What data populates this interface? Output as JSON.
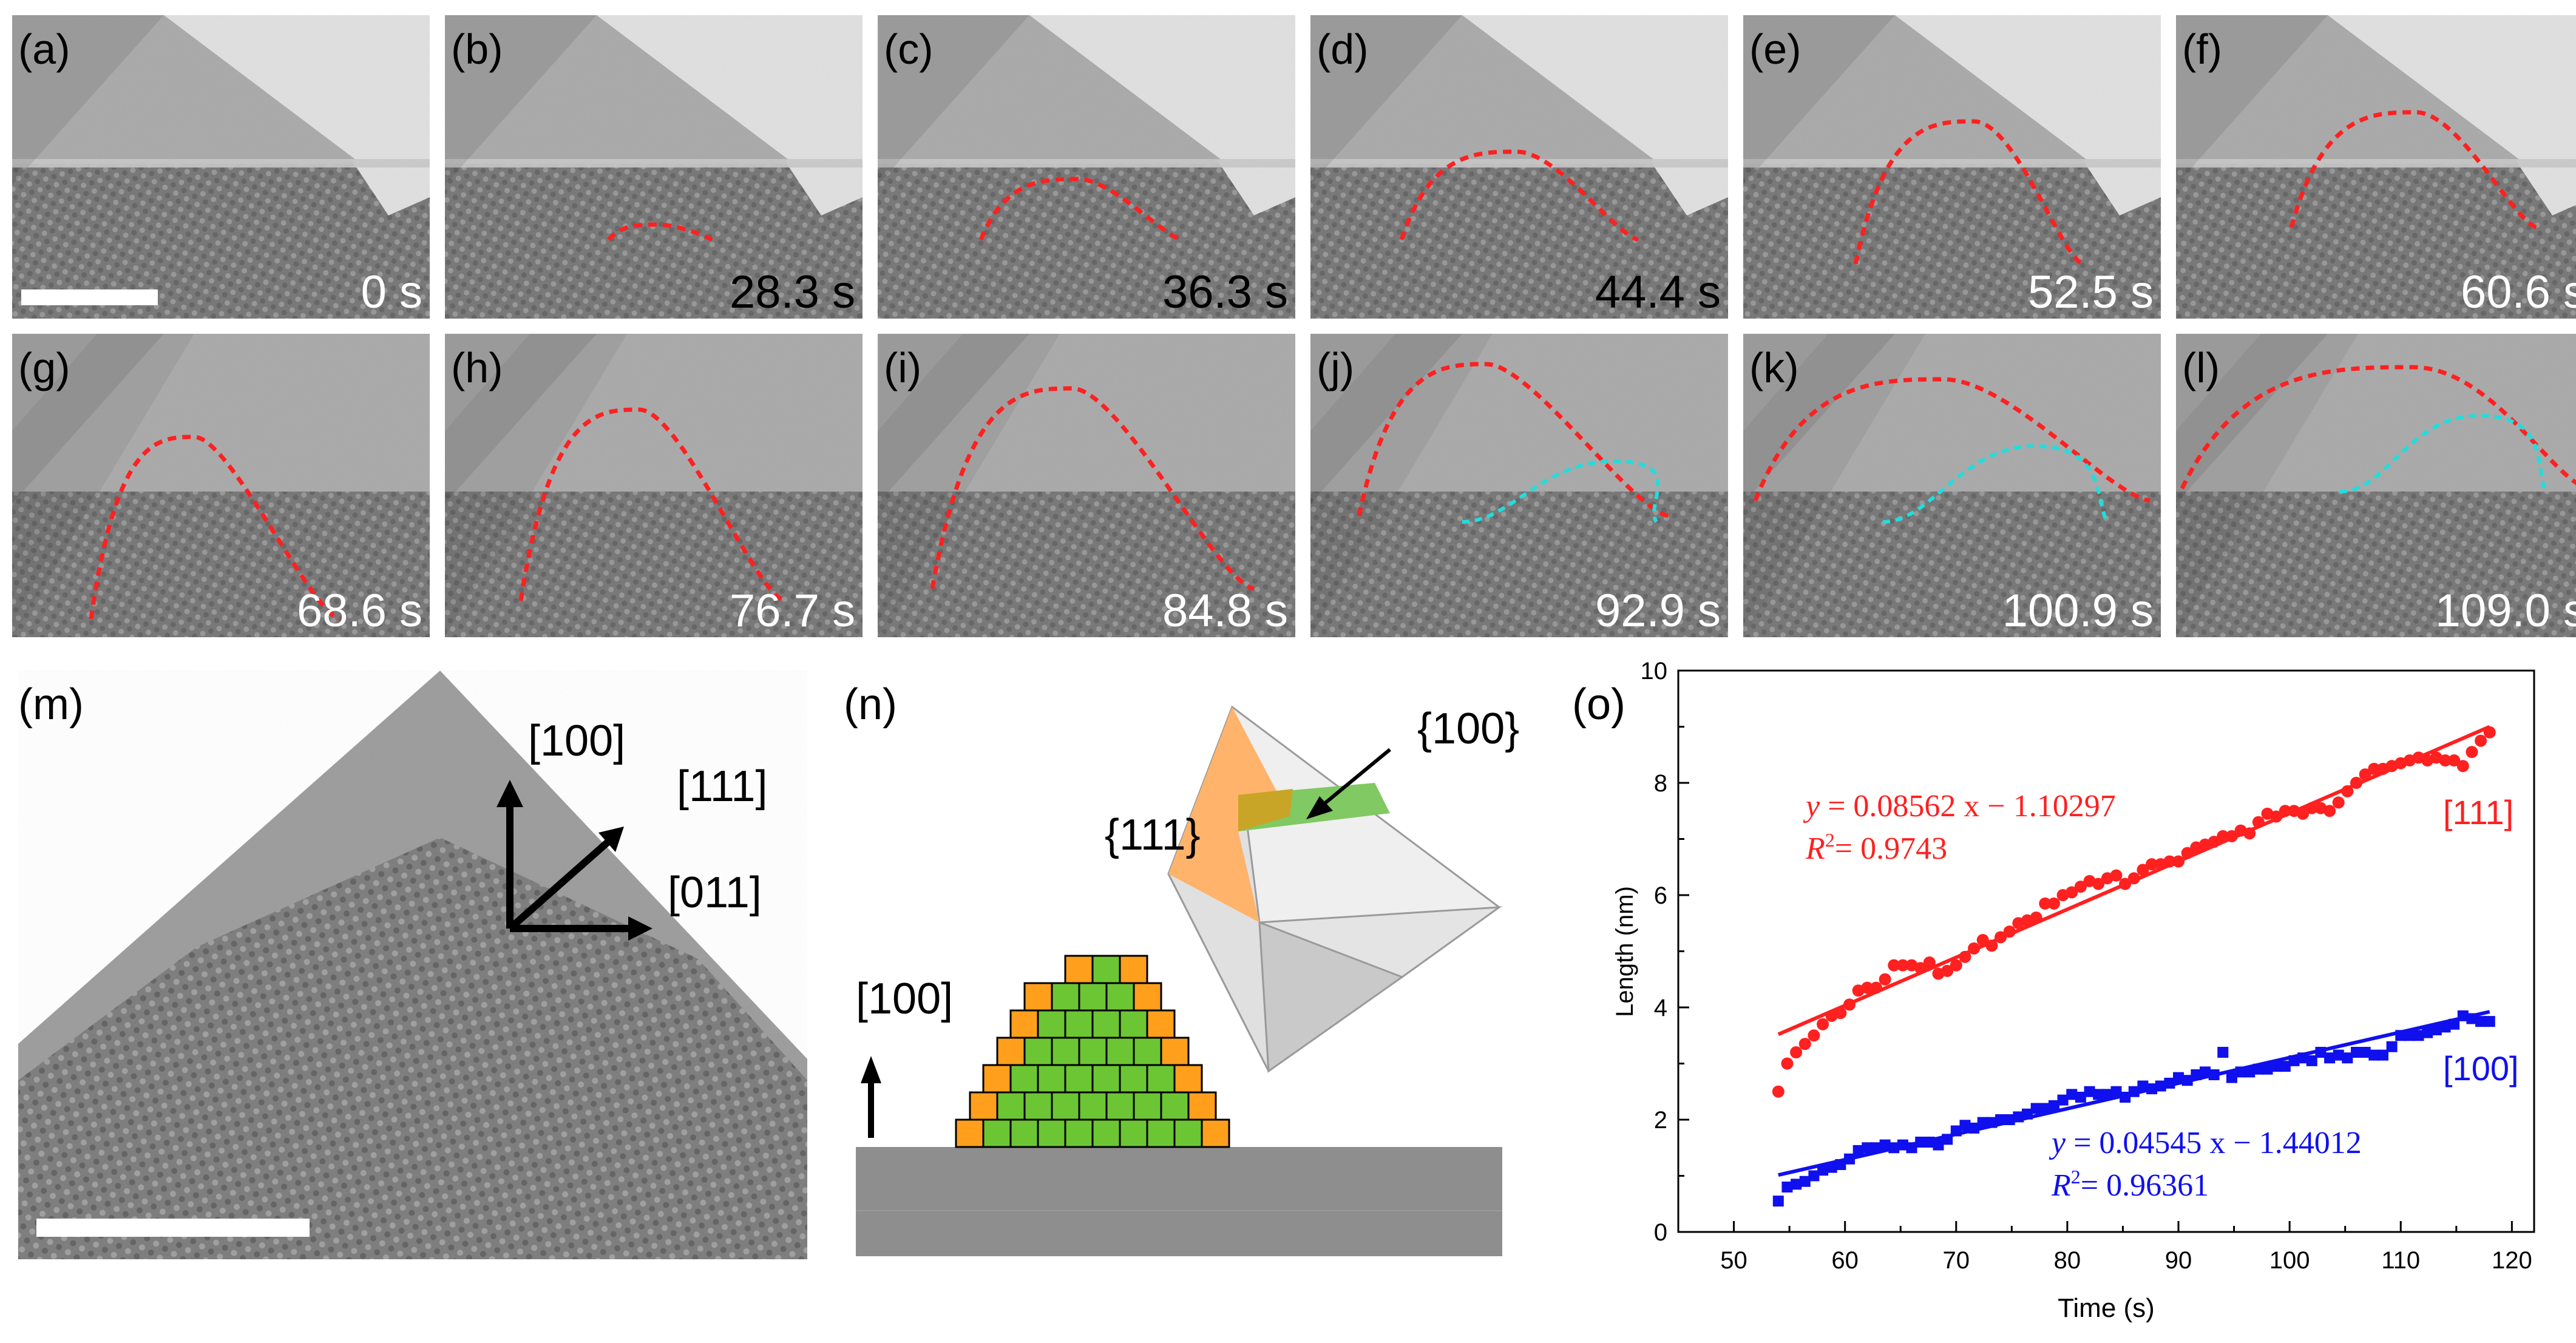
{
  "panels": [
    {
      "label": "(a)",
      "time": "0 s"
    },
    {
      "label": "(b)",
      "time": "28.3 s"
    },
    {
      "label": "(c)",
      "time": "36.3 s"
    },
    {
      "label": "(d)",
      "time": "44.4 s"
    },
    {
      "label": "(e)",
      "time": "52.5 s"
    },
    {
      "label": "(f)",
      "time": "60.6 s"
    },
    {
      "label": "(g)",
      "time": "68.6 s"
    },
    {
      "label": "(h)",
      "time": "76.7 s"
    },
    {
      "label": "(i)",
      "time": "84.8 s"
    },
    {
      "label": "(j)",
      "time": "92.9 s"
    },
    {
      "label": "(k)",
      "time": "100.9 s"
    },
    {
      "label": "(l)",
      "time": "109.0 s"
    }
  ],
  "panel_m": {
    "label": "(m)",
    "dir_100": "[100]",
    "dir_111": "[111]",
    "dir_011": "[011]"
  },
  "panel_n": {
    "label": "(n)",
    "facet_111": "{111}",
    "facet_100": "{100}",
    "growth_dir": "[100]"
  },
  "colors": {
    "red": "#ff2020",
    "blue": "#1010ee",
    "cyan": "#22dddd",
    "orange": "#ff9f1c",
    "green": "#6cc633"
  },
  "chart_data": {
    "type": "scatter",
    "panel_label": "(o)",
    "xlabel": "Time (s)",
    "ylabel": "Length (nm)",
    "xlim": [
      45,
      122
    ],
    "ylim": [
      0,
      10
    ],
    "xticks": [
      50,
      60,
      70,
      80,
      90,
      100,
      110,
      120
    ],
    "yticks": [
      0,
      2,
      4,
      6,
      8,
      10
    ],
    "series": [
      {
        "name": "[111]",
        "marker": "circle",
        "color": "#ff2020",
        "fit_equation_lhs": "y",
        "fit_equation_rhs": "= 0.08562 x − 1.10297",
        "r2_label": "R",
        "r2_value": "= 0.9743",
        "fit": {
          "slope": 0.08562,
          "intercept": -1.10297,
          "x_range": [
            54,
            118
          ]
        },
        "x": [
          54,
          54.8,
          55.6,
          56.4,
          57.2,
          58,
          58.8,
          59.6,
          60.4,
          61.2,
          62,
          62.8,
          63.6,
          64.4,
          65.2,
          66,
          66.8,
          67.6,
          68.4,
          69.2,
          70,
          70.8,
          71.6,
          72.4,
          73.2,
          74,
          74.8,
          75.6,
          76.4,
          77.2,
          78,
          78.8,
          79.6,
          80.4,
          81.2,
          82,
          82.8,
          83.6,
          84.4,
          85.2,
          86,
          86.8,
          87.6,
          88.4,
          89.2,
          90,
          90.8,
          91.6,
          92.4,
          93.2,
          94,
          94.8,
          95.6,
          96.4,
          97.2,
          98,
          98.8,
          99.6,
          100.4,
          101.2,
          102,
          102.8,
          103.6,
          104.4,
          105.2,
          106,
          106.8,
          107.6,
          108.4,
          109.2,
          110,
          110.8,
          111.6,
          112.4,
          113.2,
          114,
          114.8,
          115.6,
          116.4,
          117.2,
          118
        ],
        "y": [
          2.5,
          3.0,
          3.2,
          3.35,
          3.5,
          3.7,
          3.85,
          3.9,
          4.05,
          4.3,
          4.35,
          4.35,
          4.5,
          4.75,
          4.75,
          4.75,
          4.7,
          4.8,
          4.6,
          4.65,
          4.75,
          4.9,
          5.05,
          5.2,
          5.1,
          5.25,
          5.35,
          5.5,
          5.55,
          5.6,
          5.85,
          5.85,
          6.0,
          6.05,
          6.15,
          6.25,
          6.2,
          6.3,
          6.35,
          6.2,
          6.3,
          6.45,
          6.55,
          6.55,
          6.6,
          6.6,
          6.75,
          6.85,
          6.9,
          6.95,
          7.05,
          7.05,
          7.15,
          7.1,
          7.3,
          7.45,
          7.4,
          7.5,
          7.5,
          7.45,
          7.55,
          7.55,
          7.5,
          7.65,
          7.85,
          8.0,
          8.15,
          8.25,
          8.25,
          8.3,
          8.35,
          8.4,
          8.45,
          8.4,
          8.45,
          8.4,
          8.4,
          8.3,
          8.55,
          8.75,
          8.9
        ]
      },
      {
        "name": "[100]",
        "marker": "square",
        "color": "#1010ee",
        "fit_equation_lhs": "y",
        "fit_equation_rhs": "= 0.04545 x − 1.44012",
        "r2_label": "R",
        "r2_value": "= 0.96361",
        "fit": {
          "slope": 0.04545,
          "intercept": -1.44012,
          "x_range": [
            54,
            118
          ]
        },
        "x": [
          54,
          54.8,
          55.6,
          56.4,
          57.2,
          58,
          58.8,
          59.6,
          60.4,
          61.2,
          62,
          62.8,
          63.6,
          64.4,
          65.2,
          66,
          66.8,
          67.6,
          68.4,
          69.2,
          70,
          70.8,
          71.6,
          72.4,
          73.2,
          74,
          74.8,
          75.6,
          76.4,
          77.2,
          78,
          78.8,
          79.6,
          80.4,
          81.2,
          82,
          82.8,
          83.6,
          84.4,
          85.2,
          86,
          86.8,
          87.6,
          88.4,
          89.2,
          90,
          90.8,
          91.6,
          92.4,
          93.2,
          94,
          94.8,
          95.6,
          96.4,
          97.2,
          98,
          98.8,
          99.6,
          100.4,
          101.2,
          102,
          102.8,
          103.6,
          104.4,
          105.2,
          106,
          106.8,
          107.6,
          108.4,
          109.2,
          110,
          110.8,
          111.6,
          112.4,
          113.2,
          114,
          114.8,
          115.6,
          116.4,
          117.2,
          118
        ],
        "y": [
          0.55,
          0.8,
          0.85,
          0.9,
          1.0,
          1.1,
          1.15,
          1.2,
          1.3,
          1.45,
          1.5,
          1.5,
          1.55,
          1.5,
          1.55,
          1.5,
          1.6,
          1.6,
          1.55,
          1.65,
          1.8,
          1.9,
          1.85,
          1.95,
          1.95,
          2.0,
          2.0,
          2.05,
          2.1,
          2.2,
          2.2,
          2.25,
          2.35,
          2.45,
          2.4,
          2.5,
          2.45,
          2.45,
          2.5,
          2.4,
          2.5,
          2.6,
          2.55,
          2.6,
          2.65,
          2.75,
          2.7,
          2.8,
          2.85,
          2.8,
          3.2,
          2.75,
          2.85,
          2.85,
          2.9,
          2.9,
          2.95,
          2.95,
          3.05,
          3.1,
          3.05,
          3.2,
          3.1,
          3.15,
          3.1,
          3.2,
          3.2,
          3.15,
          3.15,
          3.3,
          3.5,
          3.5,
          3.5,
          3.55,
          3.6,
          3.65,
          3.7,
          3.85,
          3.8,
          3.75,
          3.75
        ]
      }
    ]
  }
}
